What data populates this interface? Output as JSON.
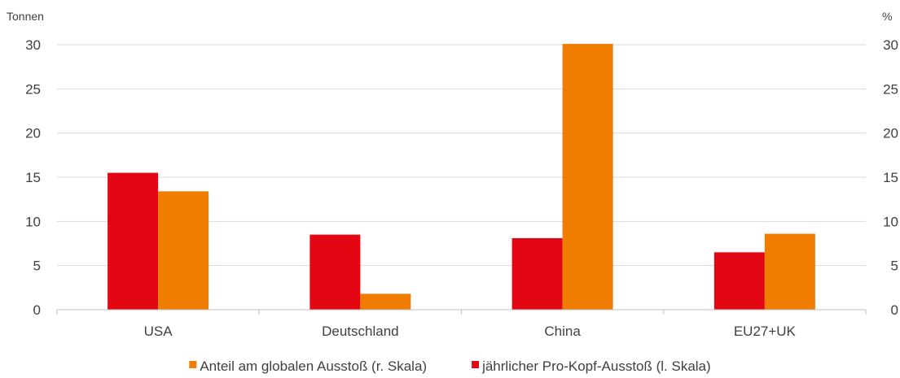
{
  "chart_data": {
    "type": "bar",
    "categories": [
      "USA",
      "Deutschland",
      "China",
      "EU27+UK"
    ],
    "series": [
      {
        "name": "jährlicher Pro-Kopf-Ausstoß (l. Skala)",
        "axis": "left",
        "color": "#e30613",
        "values": [
          15.5,
          8.5,
          8.1,
          6.5
        ]
      },
      {
        "name": "Anteil am globalen Ausstoß (r. Skala)",
        "axis": "right",
        "color": "#f07d00",
        "values": [
          13.4,
          1.8,
          30.1,
          8.6
        ]
      }
    ],
    "left_axis_label": "Tonnen",
    "right_axis_label": "%",
    "ylim": [
      0,
      30
    ],
    "yticks": [
      0,
      5,
      10,
      15,
      20,
      25,
      30
    ],
    "grid": true,
    "legend_position": "bottom",
    "legend_order": [
      1,
      0
    ]
  }
}
